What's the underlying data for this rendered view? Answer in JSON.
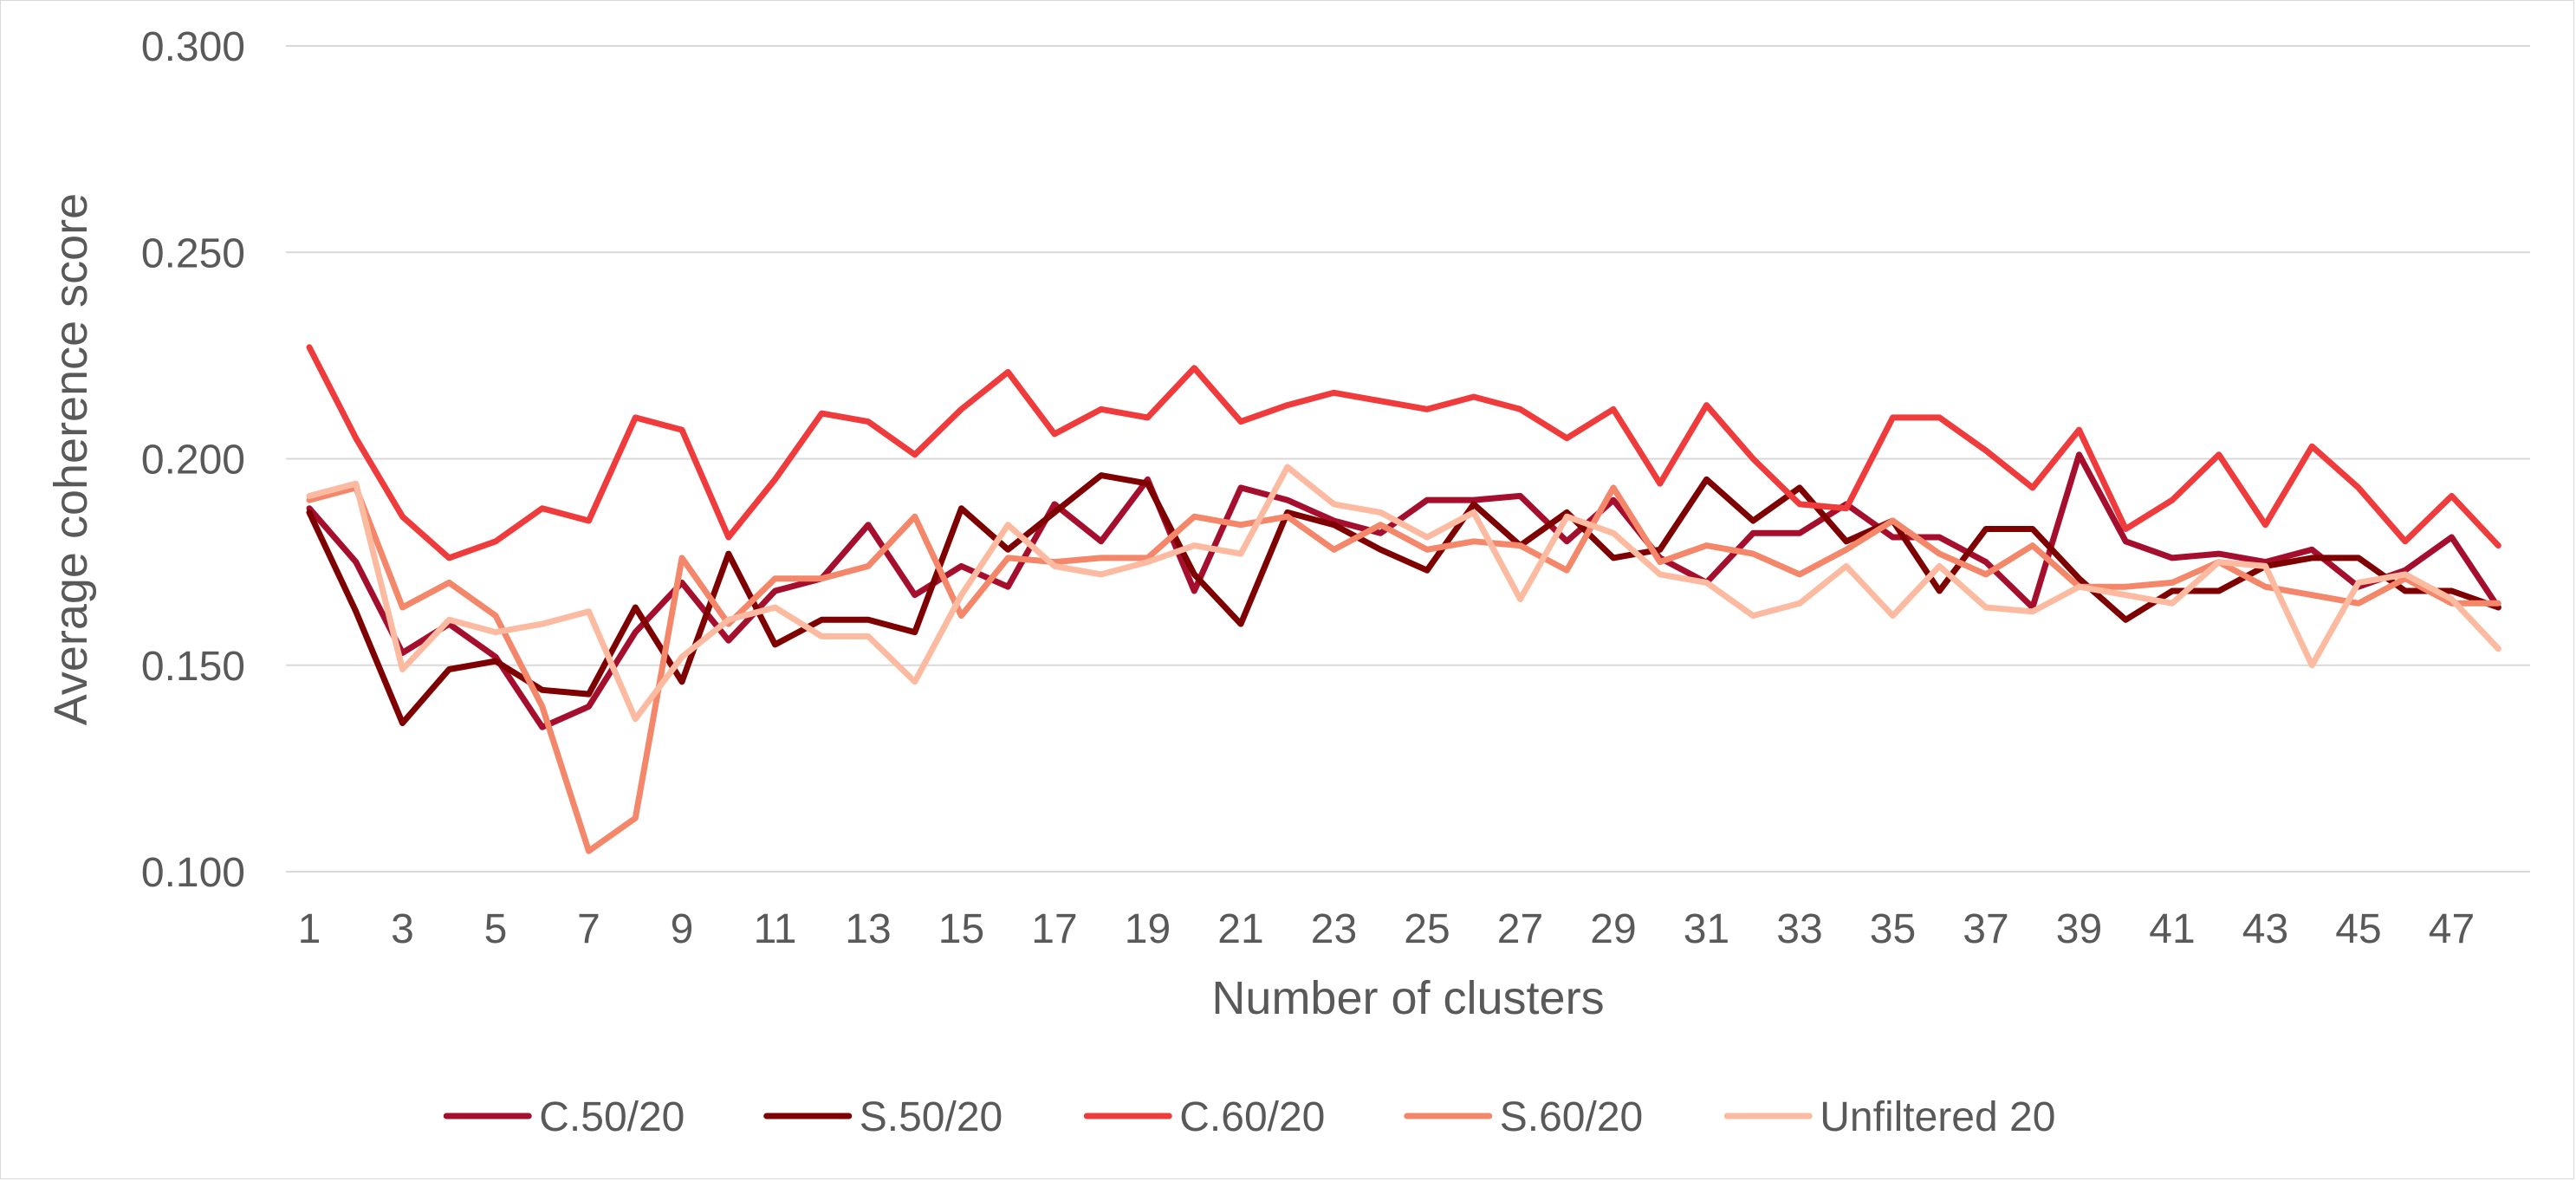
{
  "chart_data": {
    "type": "line",
    "title": "",
    "xlabel": "Number of clusters",
    "ylabel": "Average coherence score",
    "ylim": [
      0.1,
      0.3
    ],
    "yticks": [
      "0.100",
      "0.150",
      "0.200",
      "0.250",
      "0.300"
    ],
    "ytick_values": [
      0.1,
      0.15,
      0.2,
      0.25,
      0.3
    ],
    "x": [
      1,
      2,
      3,
      4,
      5,
      6,
      7,
      8,
      9,
      10,
      11,
      12,
      13,
      14,
      15,
      16,
      17,
      18,
      19,
      20,
      21,
      22,
      23,
      24,
      25,
      26,
      27,
      28,
      29,
      30,
      31,
      32,
      33,
      34,
      35,
      36,
      37,
      38,
      39,
      40,
      41,
      42,
      43,
      44,
      45,
      46,
      47,
      48
    ],
    "xtick_labels": [
      "1",
      "3",
      "5",
      "7",
      "9",
      "11",
      "13",
      "15",
      "17",
      "19",
      "21",
      "23",
      "25",
      "27",
      "29",
      "31",
      "33",
      "35",
      "37",
      "39",
      "41",
      "43",
      "45",
      "47"
    ],
    "xtick_values": [
      1,
      3,
      5,
      7,
      9,
      11,
      13,
      15,
      17,
      19,
      21,
      23,
      25,
      27,
      29,
      31,
      33,
      35,
      37,
      39,
      41,
      43,
      45,
      47
    ],
    "grid": true,
    "legend_position": "bottom",
    "series": [
      {
        "name": "C.50/20",
        "color": "#a50f2d",
        "values": [
          0.188,
          0.175,
          0.153,
          0.16,
          0.152,
          0.135,
          0.14,
          0.158,
          0.17,
          0.156,
          0.168,
          0.171,
          0.184,
          0.167,
          0.174,
          0.169,
          0.189,
          0.18,
          0.195,
          0.168,
          0.193,
          0.19,
          0.185,
          0.182,
          0.19,
          0.19,
          0.191,
          0.18,
          0.19,
          0.176,
          0.17,
          0.182,
          0.182,
          0.189,
          0.181,
          0.181,
          0.175,
          0.164,
          0.201,
          0.18,
          0.176,
          0.177,
          0.175,
          0.178,
          0.169,
          0.173,
          0.181,
          0.164
        ]
      },
      {
        "name": "S.50/20",
        "color": "#7f0000",
        "values": [
          0.187,
          0.163,
          0.136,
          0.149,
          0.151,
          0.144,
          0.143,
          0.164,
          0.146,
          0.177,
          0.155,
          0.161,
          0.161,
          0.158,
          0.188,
          0.178,
          0.187,
          0.196,
          0.194,
          0.172,
          0.16,
          0.187,
          0.184,
          0.178,
          0.173,
          0.189,
          0.179,
          0.187,
          0.176,
          0.178,
          0.195,
          0.185,
          0.193,
          0.18,
          0.185,
          0.168,
          0.183,
          0.183,
          0.171,
          0.161,
          0.168,
          0.168,
          0.174,
          0.176,
          0.176,
          0.168,
          0.168,
          0.164
        ]
      },
      {
        "name": "C.60/20",
        "color": "#ef3b3b",
        "values": [
          0.227,
          0.205,
          0.186,
          0.176,
          0.18,
          0.188,
          0.185,
          0.21,
          0.207,
          0.181,
          0.195,
          0.211,
          0.209,
          0.201,
          0.212,
          0.221,
          0.206,
          0.212,
          0.21,
          0.222,
          0.209,
          0.213,
          0.216,
          0.214,
          0.212,
          0.215,
          0.212,
          0.205,
          0.212,
          0.194,
          0.213,
          0.2,
          0.189,
          0.188,
          0.21,
          0.21,
          0.202,
          0.193,
          0.207,
          0.183,
          0.19,
          0.201,
          0.184,
          0.203,
          0.193,
          0.18,
          0.191,
          0.179
        ]
      },
      {
        "name": "S.60/20",
        "color": "#f4866a",
        "values": [
          0.19,
          0.193,
          0.164,
          0.17,
          0.162,
          0.14,
          0.105,
          0.113,
          0.176,
          0.16,
          0.171,
          0.171,
          0.174,
          0.186,
          0.162,
          0.176,
          0.175,
          0.176,
          0.176,
          0.186,
          0.184,
          0.186,
          0.178,
          0.184,
          0.178,
          0.18,
          0.179,
          0.173,
          0.193,
          0.175,
          0.179,
          0.177,
          0.172,
          0.178,
          0.185,
          0.177,
          0.172,
          0.179,
          0.169,
          0.169,
          0.17,
          0.175,
          0.169,
          0.167,
          0.165,
          0.171,
          0.165,
          0.165
        ]
      },
      {
        "name": "Unfiltered 20",
        "color": "#fcbba1",
        "values": [
          0.191,
          0.194,
          0.149,
          0.161,
          0.158,
          0.16,
          0.163,
          0.137,
          0.152,
          0.161,
          0.164,
          0.157,
          0.157,
          0.146,
          0.167,
          0.184,
          0.174,
          0.172,
          0.175,
          0.179,
          0.177,
          0.198,
          0.189,
          0.187,
          0.181,
          0.187,
          0.166,
          0.186,
          0.182,
          0.172,
          0.17,
          0.162,
          0.165,
          0.174,
          0.162,
          0.174,
          0.164,
          0.163,
          0.169,
          0.167,
          0.165,
          0.175,
          0.174,
          0.15,
          0.17,
          0.172,
          0.166,
          0.154
        ]
      }
    ]
  }
}
